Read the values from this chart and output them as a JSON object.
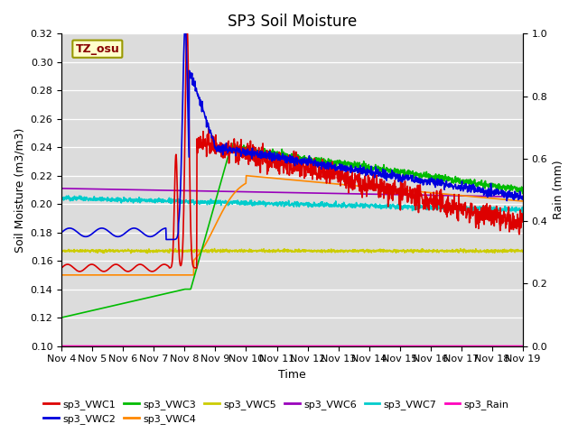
{
  "title": "SP3 Soil Moisture",
  "ylabel_left": "Soil Moisture (m3/m3)",
  "ylabel_right": "Rain (mm)",
  "xlabel": "Time",
  "ylim_left": [
    0.1,
    0.32
  ],
  "ylim_right": [
    0.0,
    1.0
  ],
  "yticks_left": [
    0.1,
    0.12,
    0.14,
    0.16,
    0.18,
    0.2,
    0.22,
    0.24,
    0.26,
    0.28,
    0.3,
    0.32
  ],
  "yticks_right": [
    0.0,
    0.2,
    0.4,
    0.6,
    0.8,
    1.0
  ],
  "xtick_labels": [
    "Nov 4",
    "Nov 5",
    "Nov 6",
    "Nov 7",
    "Nov 8",
    "Nov 9",
    "Nov 10",
    "Nov 11",
    "Nov 12",
    "Nov 13",
    "Nov 14",
    "Nov 15",
    "Nov 16",
    "Nov 17",
    "Nov 18",
    "Nov 19"
  ],
  "background_color": "#dcdcdc",
  "fig_background": "#ffffff",
  "title_fontsize": 12,
  "label_fontsize": 9,
  "tick_fontsize": 8,
  "legend_fontsize": 8,
  "tz_osu_label": "TZ_osu",
  "series_colors": {
    "sp3_VWC1": "#dd0000",
    "sp3_VWC2": "#0000dd",
    "sp3_VWC3": "#00bb00",
    "sp3_VWC4": "#ff8800",
    "sp3_VWC5": "#cccc00",
    "sp3_VWC6": "#9900bb",
    "sp3_VWC7": "#00cccc",
    "sp3_Rain": "#ff00bb"
  }
}
